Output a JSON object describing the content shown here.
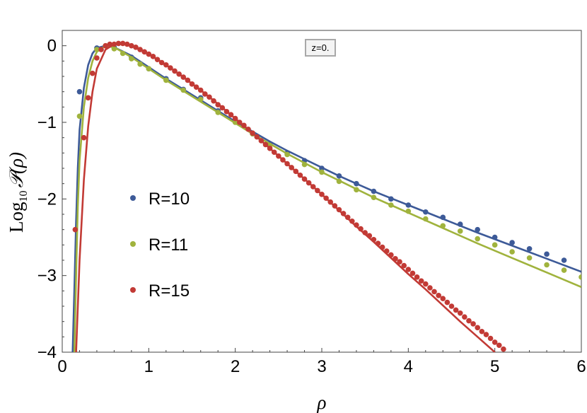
{
  "chart_data": {
    "type": "scatter",
    "title": "",
    "annotation": "z=0.",
    "xlabel": "ρ",
    "ylabel_prefix": "Log",
    "ylabel_sub": "10",
    "ylabel_main": "𝒫(ρ)",
    "xlim": [
      0,
      6
    ],
    "ylim": [
      -4,
      0.2
    ],
    "xticks": [
      "0",
      "1",
      "2",
      "3",
      "4",
      "5",
      "6"
    ],
    "yticks": [
      "0",
      "−1",
      "−2",
      "−3",
      "−4"
    ],
    "grid": false,
    "legend_position": "left-middle",
    "series": [
      {
        "name": "R=10",
        "color": "#3d5a98",
        "points": [
          [
            0.2,
            -0.6
          ],
          [
            0.4,
            -0.03
          ],
          [
            0.6,
            -0.02
          ],
          [
            0.8,
            -0.15
          ],
          [
            1.0,
            -0.3
          ],
          [
            1.2,
            -0.43
          ],
          [
            1.4,
            -0.57
          ],
          [
            1.6,
            -0.68
          ],
          [
            1.8,
            -0.85
          ],
          [
            2.0,
            -0.98
          ],
          [
            2.2,
            -1.15
          ],
          [
            2.4,
            -1.28
          ],
          [
            2.6,
            -1.4
          ],
          [
            2.8,
            -1.5
          ],
          [
            3.0,
            -1.6
          ],
          [
            3.2,
            -1.7
          ],
          [
            3.4,
            -1.8
          ],
          [
            3.6,
            -1.9
          ],
          [
            3.8,
            -2.0
          ],
          [
            4.0,
            -2.08
          ],
          [
            4.2,
            -2.17
          ],
          [
            4.4,
            -2.24
          ],
          [
            4.6,
            -2.33
          ],
          [
            4.8,
            -2.4
          ],
          [
            5.0,
            -2.5
          ],
          [
            5.2,
            -2.57
          ],
          [
            5.4,
            -2.65
          ],
          [
            5.6,
            -2.72
          ],
          [
            5.8,
            -2.8
          ]
        ],
        "curve": [
          [
            0.12,
            -4.0
          ],
          [
            0.14,
            -3.2
          ],
          [
            0.16,
            -2.3
          ],
          [
            0.18,
            -1.6
          ],
          [
            0.2,
            -1.1
          ],
          [
            0.25,
            -0.55
          ],
          [
            0.3,
            -0.25
          ],
          [
            0.35,
            -0.1
          ],
          [
            0.4,
            -0.03
          ],
          [
            0.5,
            0.0
          ],
          [
            0.6,
            -0.02
          ],
          [
            0.8,
            -0.13
          ],
          [
            1.0,
            -0.28
          ],
          [
            1.2,
            -0.43
          ],
          [
            1.4,
            -0.57
          ],
          [
            1.6,
            -0.71
          ],
          [
            1.8,
            -0.85
          ],
          [
            2.0,
            -0.99
          ],
          [
            2.2,
            -1.12
          ],
          [
            2.4,
            -1.25
          ],
          [
            2.6,
            -1.37
          ],
          [
            2.8,
            -1.48
          ],
          [
            3.0,
            -1.59
          ],
          [
            3.2,
            -1.7
          ],
          [
            3.4,
            -1.8
          ],
          [
            3.6,
            -1.9
          ],
          [
            3.8,
            -1.99
          ],
          [
            4.0,
            -2.08
          ],
          [
            4.4,
            -2.26
          ],
          [
            4.8,
            -2.44
          ],
          [
            5.2,
            -2.61
          ],
          [
            5.6,
            -2.78
          ],
          [
            6.0,
            -2.95
          ]
        ]
      },
      {
        "name": "R=11",
        "color": "#a0b33d",
        "points": [
          [
            0.2,
            -0.92
          ],
          [
            0.4,
            -0.05
          ],
          [
            0.5,
            0.0
          ],
          [
            0.6,
            -0.04
          ],
          [
            0.7,
            -0.1
          ],
          [
            0.8,
            -0.17
          ],
          [
            0.9,
            -0.24
          ],
          [
            1.0,
            -0.3
          ],
          [
            1.2,
            -0.45
          ],
          [
            1.4,
            -0.58
          ],
          [
            1.6,
            -0.7
          ],
          [
            1.8,
            -0.87
          ],
          [
            2.0,
            -1.0
          ],
          [
            2.2,
            -1.15
          ],
          [
            2.4,
            -1.3
          ],
          [
            2.6,
            -1.42
          ],
          [
            2.8,
            -1.55
          ],
          [
            3.0,
            -1.65
          ],
          [
            3.2,
            -1.77
          ],
          [
            3.4,
            -1.88
          ],
          [
            3.6,
            -1.98
          ],
          [
            3.8,
            -2.08
          ],
          [
            4.0,
            -2.16
          ],
          [
            4.2,
            -2.26
          ],
          [
            4.4,
            -2.35
          ],
          [
            4.6,
            -2.42
          ],
          [
            4.8,
            -2.52
          ],
          [
            5.0,
            -2.6
          ],
          [
            5.2,
            -2.69
          ],
          [
            5.4,
            -2.77
          ],
          [
            5.6,
            -2.86
          ],
          [
            5.8,
            -2.93
          ],
          [
            6.0,
            -3.02
          ]
        ],
        "curve": [
          [
            0.14,
            -4.0
          ],
          [
            0.16,
            -3.0
          ],
          [
            0.18,
            -2.1
          ],
          [
            0.2,
            -1.5
          ],
          [
            0.25,
            -0.8
          ],
          [
            0.3,
            -0.42
          ],
          [
            0.35,
            -0.2
          ],
          [
            0.4,
            -0.08
          ],
          [
            0.5,
            0.0
          ],
          [
            0.6,
            -0.02
          ],
          [
            0.8,
            -0.15
          ],
          [
            1.0,
            -0.3
          ],
          [
            1.2,
            -0.45
          ],
          [
            1.4,
            -0.59
          ],
          [
            1.6,
            -0.73
          ],
          [
            1.8,
            -0.87
          ],
          [
            2.0,
            -1.01
          ],
          [
            2.2,
            -1.15
          ],
          [
            2.4,
            -1.28
          ],
          [
            2.6,
            -1.41
          ],
          [
            2.8,
            -1.53
          ],
          [
            3.0,
            -1.65
          ],
          [
            3.2,
            -1.76
          ],
          [
            3.4,
            -1.87
          ],
          [
            3.6,
            -1.98
          ],
          [
            3.8,
            -2.08
          ],
          [
            4.0,
            -2.18
          ],
          [
            4.4,
            -2.38
          ],
          [
            4.8,
            -2.58
          ],
          [
            5.2,
            -2.77
          ],
          [
            5.6,
            -2.96
          ],
          [
            6.0,
            -3.15
          ]
        ]
      },
      {
        "name": "R=15",
        "color": "#c23a35",
        "points": [
          [
            0.15,
            -2.4
          ],
          [
            0.25,
            -1.2
          ],
          [
            0.3,
            -0.68
          ],
          [
            0.35,
            -0.36
          ],
          [
            0.4,
            -0.16
          ],
          [
            0.45,
            -0.05
          ],
          [
            0.5,
            0.0
          ],
          [
            0.55,
            0.02
          ],
          [
            0.6,
            0.02
          ],
          [
            0.65,
            0.03
          ],
          [
            0.7,
            0.03
          ],
          [
            0.75,
            0.02
          ],
          [
            0.8,
            0.0
          ],
          [
            0.85,
            -0.02
          ],
          [
            0.9,
            -0.05
          ],
          [
            0.95,
            -0.08
          ],
          [
            1.0,
            -0.11
          ],
          [
            1.05,
            -0.14
          ],
          [
            1.1,
            -0.18
          ],
          [
            1.15,
            -0.22
          ],
          [
            1.2,
            -0.25
          ],
          [
            1.25,
            -0.29
          ],
          [
            1.3,
            -0.33
          ],
          [
            1.35,
            -0.37
          ],
          [
            1.4,
            -0.41
          ],
          [
            1.45,
            -0.45
          ],
          [
            1.5,
            -0.5
          ],
          [
            1.55,
            -0.54
          ],
          [
            1.6,
            -0.58
          ],
          [
            1.65,
            -0.63
          ],
          [
            1.7,
            -0.67
          ],
          [
            1.75,
            -0.72
          ],
          [
            1.8,
            -0.77
          ],
          [
            1.85,
            -0.81
          ],
          [
            1.9,
            -0.86
          ],
          [
            1.95,
            -0.9
          ],
          [
            2.0,
            -0.95
          ],
          [
            2.05,
            -1.0
          ],
          [
            2.1,
            -1.04
          ],
          [
            2.15,
            -1.09
          ],
          [
            2.2,
            -1.14
          ],
          [
            2.25,
            -1.19
          ],
          [
            2.3,
            -1.24
          ],
          [
            2.35,
            -1.29
          ],
          [
            2.4,
            -1.34
          ],
          [
            2.45,
            -1.39
          ],
          [
            2.5,
            -1.44
          ],
          [
            2.55,
            -1.49
          ],
          [
            2.6,
            -1.54
          ],
          [
            2.65,
            -1.59
          ],
          [
            2.7,
            -1.64
          ],
          [
            2.75,
            -1.69
          ],
          [
            2.8,
            -1.74
          ],
          [
            2.85,
            -1.79
          ],
          [
            2.9,
            -1.84
          ],
          [
            2.95,
            -1.89
          ],
          [
            3.0,
            -1.94
          ],
          [
            3.05,
            -1.99
          ],
          [
            3.1,
            -2.04
          ],
          [
            3.15,
            -2.09
          ],
          [
            3.2,
            -2.14
          ],
          [
            3.25,
            -2.19
          ],
          [
            3.3,
            -2.24
          ],
          [
            3.35,
            -2.29
          ],
          [
            3.4,
            -2.34
          ],
          [
            3.45,
            -2.39
          ],
          [
            3.5,
            -2.44
          ],
          [
            3.55,
            -2.48
          ],
          [
            3.6,
            -2.53
          ],
          [
            3.65,
            -2.58
          ],
          [
            3.7,
            -2.63
          ],
          [
            3.75,
            -2.68
          ],
          [
            3.8,
            -2.73
          ],
          [
            3.85,
            -2.78
          ],
          [
            3.9,
            -2.82
          ],
          [
            3.95,
            -2.87
          ],
          [
            4.0,
            -2.92
          ],
          [
            4.05,
            -2.97
          ],
          [
            4.1,
            -3.02
          ],
          [
            4.15,
            -3.07
          ],
          [
            4.2,
            -3.11
          ],
          [
            4.25,
            -3.16
          ],
          [
            4.3,
            -3.21
          ],
          [
            4.35,
            -3.26
          ],
          [
            4.4,
            -3.3
          ],
          [
            4.45,
            -3.35
          ],
          [
            4.5,
            -3.4
          ],
          [
            4.55,
            -3.45
          ],
          [
            4.6,
            -3.49
          ],
          [
            4.65,
            -3.54
          ],
          [
            4.7,
            -3.59
          ],
          [
            4.75,
            -3.63
          ],
          [
            4.8,
            -3.68
          ],
          [
            4.85,
            -3.73
          ],
          [
            4.9,
            -3.77
          ],
          [
            4.95,
            -3.82
          ],
          [
            5.0,
            -3.87
          ],
          [
            5.05,
            -3.91
          ],
          [
            5.1,
            -3.96
          ]
        ],
        "curve": [
          [
            0.16,
            -4.0
          ],
          [
            0.2,
            -2.8
          ],
          [
            0.25,
            -1.75
          ],
          [
            0.3,
            -1.05
          ],
          [
            0.35,
            -0.6
          ],
          [
            0.4,
            -0.3
          ],
          [
            0.5,
            -0.05
          ],
          [
            0.6,
            0.02
          ],
          [
            0.7,
            0.03
          ],
          [
            0.8,
            0.0
          ],
          [
            1.0,
            -0.11
          ],
          [
            1.2,
            -0.25
          ],
          [
            1.4,
            -0.41
          ],
          [
            1.6,
            -0.58
          ],
          [
            1.8,
            -0.76
          ],
          [
            2.0,
            -0.95
          ],
          [
            2.2,
            -1.14
          ],
          [
            2.4,
            -1.34
          ],
          [
            2.6,
            -1.54
          ],
          [
            2.8,
            -1.74
          ],
          [
            3.0,
            -1.94
          ],
          [
            3.2,
            -2.15
          ],
          [
            3.4,
            -2.36
          ],
          [
            3.6,
            -2.56
          ],
          [
            3.8,
            -2.77
          ],
          [
            4.0,
            -2.98
          ],
          [
            4.2,
            -3.18
          ],
          [
            4.4,
            -3.39
          ],
          [
            4.6,
            -3.6
          ],
          [
            4.8,
            -3.8
          ],
          [
            5.0,
            -4.0
          ]
        ]
      }
    ]
  }
}
